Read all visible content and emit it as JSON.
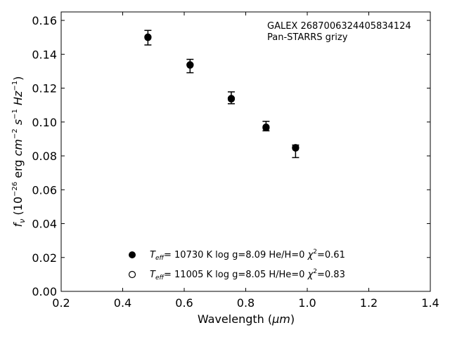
{
  "chart_data": {
    "type": "scatter",
    "title": "",
    "xlabel": "Wavelength",
    "xlabel_unit": "μm",
    "ylabel": "f",
    "ylabel_subscript": "ν",
    "ylabel_unit": "(10−26 erg cm−2 s−1 Hz−1)",
    "xlim": [
      0.2,
      1.4
    ],
    "ylim": [
      0.0,
      0.165
    ],
    "xticks": [
      "0.2",
      "0.4",
      "0.6",
      "0.8",
      "1.0",
      "1.2",
      "1.4"
    ],
    "yticks": [
      "0.00",
      "0.02",
      "0.04",
      "0.06",
      "0.08",
      "0.10",
      "0.12",
      "0.14",
      "0.16"
    ],
    "xtick_values": [
      0.2,
      0.4,
      0.6,
      0.8,
      1.0,
      1.2,
      1.4
    ],
    "ytick_values": [
      0.0,
      0.02,
      0.04,
      0.06,
      0.08,
      0.1,
      0.12,
      0.14,
      0.16
    ],
    "grid": false,
    "annotation_lines": [
      "GALEX 2687006324405834124",
      "Pan-STARRS grizy"
    ],
    "observed": {
      "x": [
        0.482,
        0.619,
        0.753,
        0.866,
        0.962
      ],
      "y": [
        0.15,
        0.1334,
        0.1142,
        0.0974,
        0.0852
      ],
      "err_low": [
        0.1455,
        0.1291,
        0.1108,
        0.0948,
        0.079
      ],
      "err_high": [
        0.1541,
        0.137,
        0.1178,
        0.1004,
        0.0864
      ]
    },
    "series": [
      {
        "name": "Teff= 10730 K  log g=8.09  He/H=0  χ2=0.61",
        "marker": "filled-circle",
        "color": "#000000",
        "x": [
          0.482,
          0.619,
          0.753,
          0.866,
          0.962
        ],
        "y": [
          0.1502,
          0.1338,
          0.1136,
          0.0966,
          0.0846
        ]
      },
      {
        "name": "Teff= 11005 K  log g=8.05  H/He=0  χ2=0.83",
        "marker": "open-circle",
        "color": "#000000",
        "x": [
          0.482,
          0.619,
          0.753,
          0.866,
          0.962
        ],
        "y": [
          0.1499,
          0.1336,
          0.1139,
          0.097,
          0.0849
        ]
      }
    ],
    "legend": [
      {
        "teff_label": "T",
        "teff_sub": "eff",
        "rest": "= 10730 K  log g=8.09  He/H=0  ",
        "chi": "χ",
        "chi_sup": "2",
        "chi_val": "=0.61",
        "marker": "filled"
      },
      {
        "teff_label": "T",
        "teff_sub": "eff",
        "rest": "= 11005 K  log g=8.05  H/He=0  ",
        "chi": "χ",
        "chi_sup": "2",
        "chi_val": "=0.83",
        "marker": "open"
      }
    ],
    "legend_position": "lower-center"
  }
}
